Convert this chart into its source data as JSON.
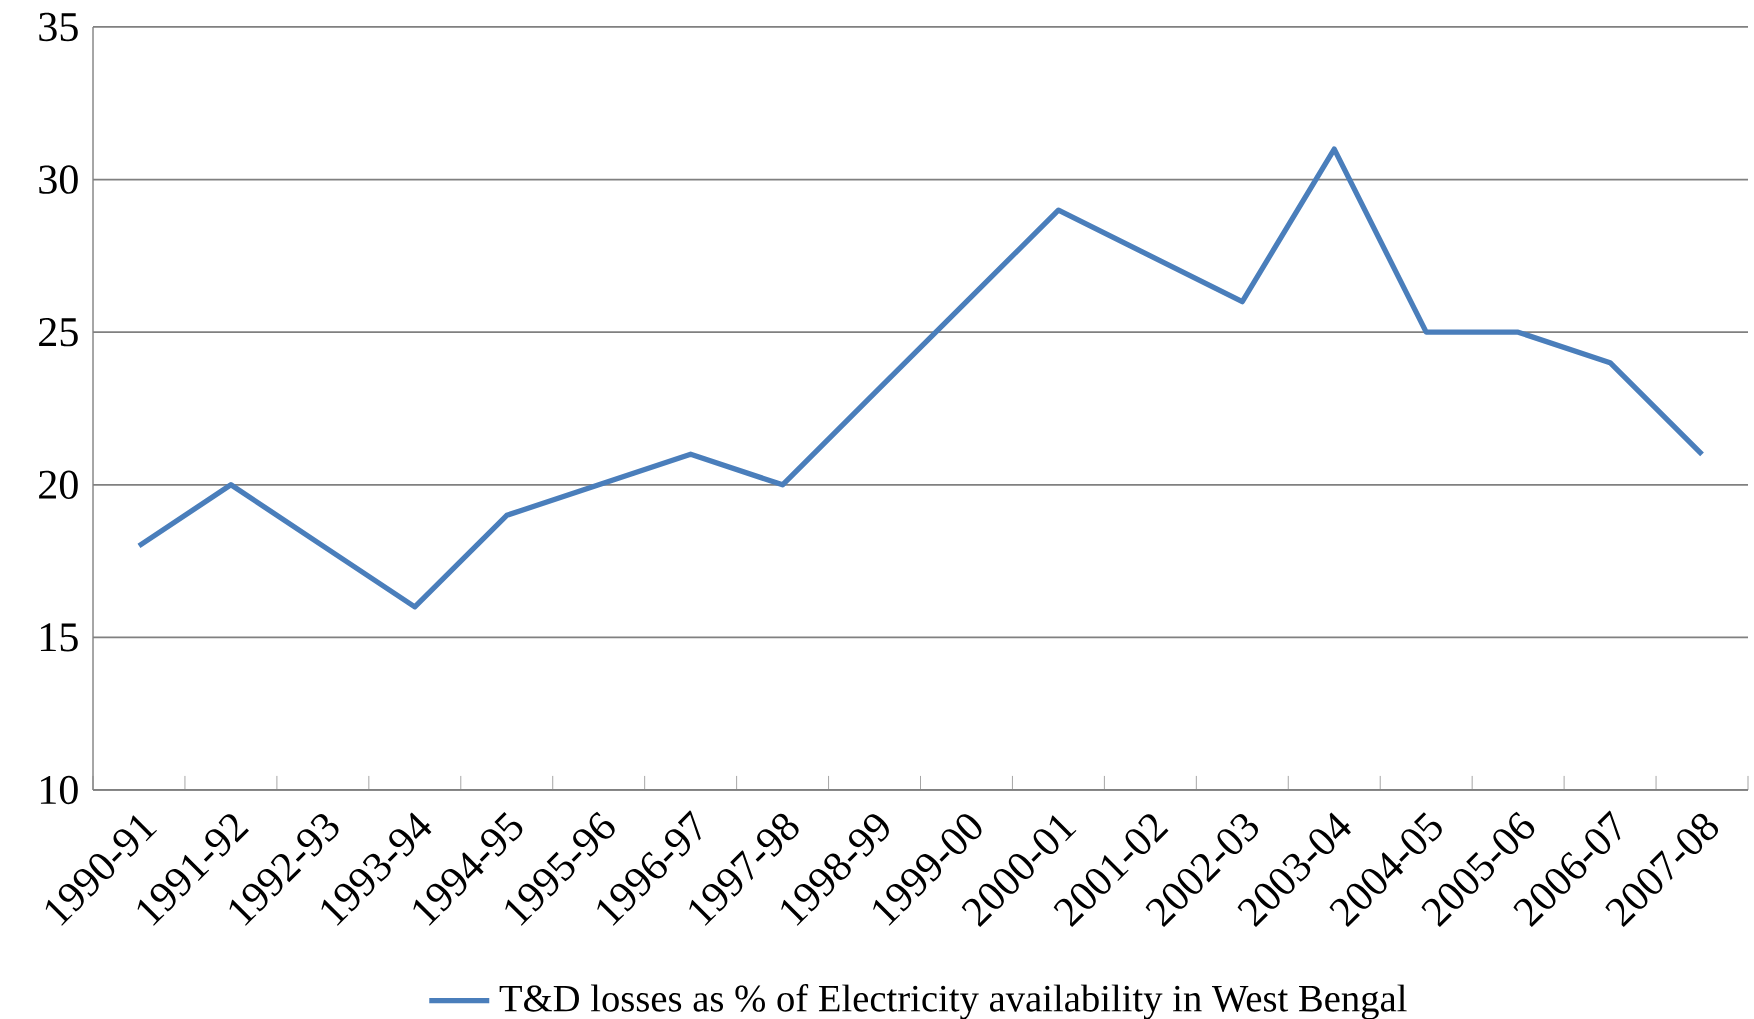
{
  "chart_data": {
    "type": "line",
    "categories": [
      "1990-91",
      "1991-92",
      "1992-93",
      "1993-94",
      "1994-95",
      "1995-96",
      "1996-97",
      "1997-98",
      "1998-99",
      "1999-00",
      "2000-01",
      "2001-02",
      "2002-03",
      "2003-04",
      "2004-05",
      "2005-06",
      "2006-07",
      "2007-08"
    ],
    "series": [
      {
        "name": "T&D losses as % of Electricity availability in West Bengal",
        "color": "#4a7ebb",
        "values": [
          18,
          20,
          18,
          16,
          19,
          20,
          21,
          20,
          23,
          26,
          29,
          27.5,
          26,
          31,
          25,
          25,
          24,
          21
        ]
      }
    ],
    "ylim": [
      10,
      35
    ],
    "yticks": [
      10,
      15,
      20,
      25,
      30,
      35
    ],
    "grid": "y",
    "legend": "bottom",
    "marker": "none",
    "line_style": "solid"
  }
}
